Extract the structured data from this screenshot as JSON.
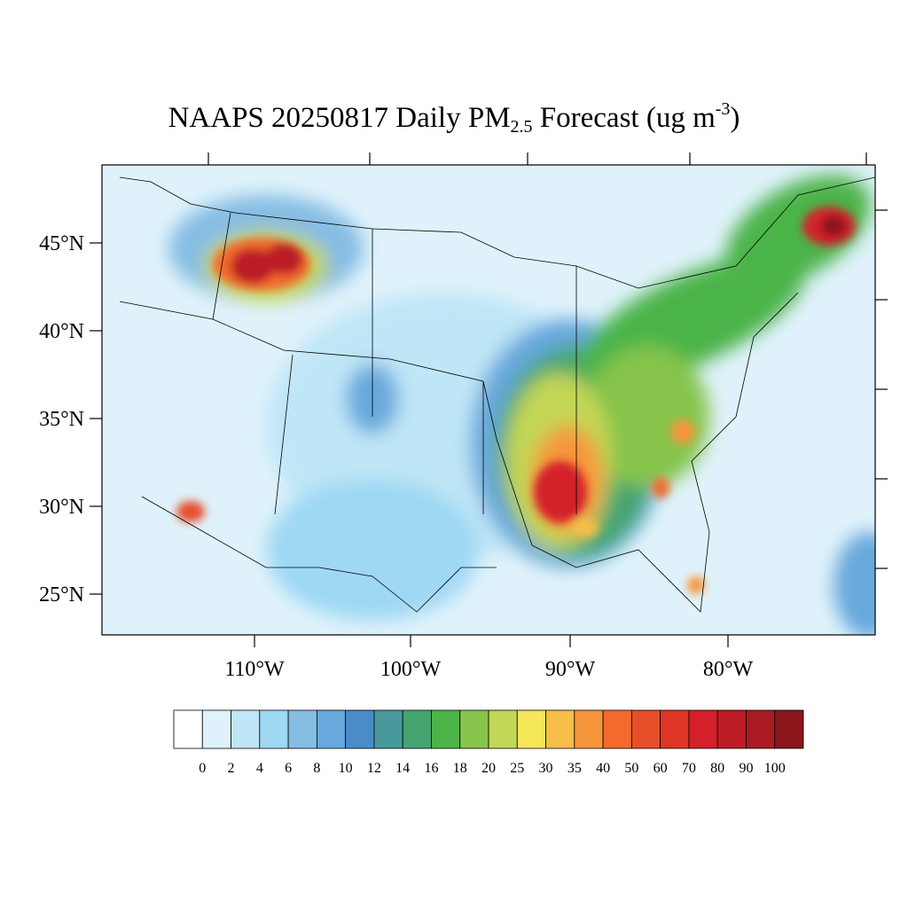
{
  "title": {
    "main": "NAAPS 20250817 Daily PM",
    "subscript": "2.5",
    "middle": " Forecast (ug m",
    "superscript": "-3",
    "end": ")"
  },
  "lat_labels": [
    "45°N",
    "40°N",
    "35°N",
    "30°N",
    "25°N"
  ],
  "lon_labels": [
    "110°W",
    "100°W",
    "90°W",
    "80°W"
  ],
  "colorbar": {
    "levels": [
      0,
      2,
      4,
      6,
      8,
      10,
      12,
      14,
      16,
      18,
      20,
      25,
      30,
      35,
      40,
      50,
      60,
      70,
      80,
      90,
      100
    ],
    "colors": [
      "#ffffff",
      "#dff2fb",
      "#bfe6f7",
      "#9ed8f3",
      "#85bde3",
      "#68a8dc",
      "#4a8cc8",
      "#47999b",
      "#45a571",
      "#4cb449",
      "#86c44c",
      "#c3d655",
      "#f6e65a",
      "#f8be4a",
      "#f6963c",
      "#f26a2e",
      "#e64e2a",
      "#de3526",
      "#d3202a",
      "#bc1c26",
      "#a91b21",
      "#8b161b"
    ]
  }
}
